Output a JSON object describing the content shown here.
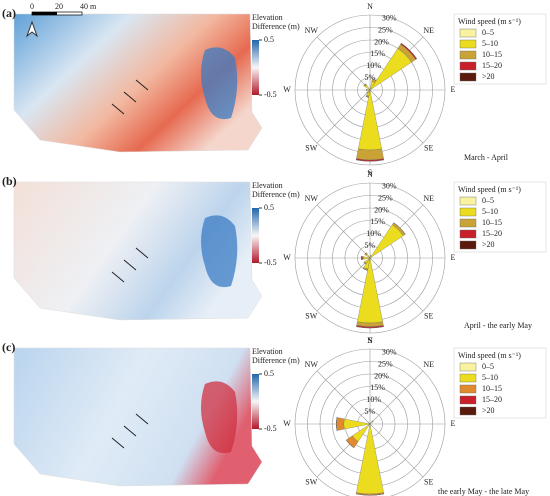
{
  "chart_data": [
    {
      "type": "windrose",
      "panel_label": "(a)",
      "caption": "March - April",
      "colorbar_title": [
        "Elevation",
        "Difference (m)"
      ],
      "colorbar_lim": [
        -0.5,
        0.5
      ],
      "colorbar_ticks": [
        0.5,
        -0.5
      ],
      "scale_bar": {
        "ticks": [
          0,
          20,
          {
            "value": 40,
            "label": "40 m"
          }
        ]
      },
      "categories": [
        "N",
        null,
        "NE",
        null,
        "E",
        null,
        "SE",
        null,
        "S",
        null,
        "SW",
        null,
        "W",
        null,
        "NW",
        null
      ],
      "rlim": [
        0,
        30
      ],
      "rticks": [
        {
          "value": 5,
          "label": "5%"
        },
        {
          "value": 10,
          "label": "10%"
        },
        {
          "value": 15,
          "label": "15%"
        },
        {
          "value": 20,
          "label": "20%"
        },
        {
          "value": 25,
          "label": "25%"
        },
        {
          "value": 30,
          "label": "30%"
        }
      ],
      "legend_title": "Wind speed (m s⁻¹)",
      "series": [
        {
          "name": "0–5",
          "color": "#f7f3a0",
          "values": [
            0,
            0.5,
            1,
            0,
            0,
            0,
            0,
            0,
            1,
            0.5,
            0.5,
            0,
            0.5,
            0,
            0.5,
            0
          ]
        },
        {
          "name": "5–10",
          "color": "#ecdc1e",
          "values": [
            0,
            3,
            19,
            0,
            0,
            0,
            0,
            0,
            23,
            2,
            1,
            0,
            1,
            0,
            2,
            0
          ]
        },
        {
          "name": "10–15",
          "color": "#c9a336",
          "values": [
            0,
            1,
            2,
            0,
            0,
            0,
            0,
            0,
            4,
            0.5,
            0,
            0,
            0,
            0,
            0.5,
            0
          ]
        },
        {
          "name": "15–20",
          "color": "#c8202a",
          "values": [
            0,
            0,
            0.5,
            0,
            0,
            0,
            0,
            0,
            0.5,
            0,
            0,
            0,
            0,
            0,
            0,
            0
          ]
        },
        {
          "name": ">20",
          "color": "#5c1a0c",
          "values": [
            0,
            0,
            0,
            0,
            0,
            0,
            0,
            0,
            0,
            0,
            0,
            0,
            0,
            0,
            0,
            0
          ]
        }
      ]
    },
    {
      "type": "windrose",
      "panel_label": "(b)",
      "caption": "April - the early May",
      "colorbar_title": [
        "Elevation",
        "Difference (m)"
      ],
      "colorbar_lim": [
        -0.5,
        0.5
      ],
      "colorbar_ticks": [
        0.5,
        -0.5
      ],
      "categories": [
        "N",
        null,
        "NE",
        null,
        "E",
        null,
        "SE",
        null,
        "S",
        null,
        "SW",
        null,
        "W",
        null,
        "NW",
        null
      ],
      "rlim": [
        0,
        30
      ],
      "rticks": [
        {
          "value": 5,
          "label": "5%"
        },
        {
          "value": 10,
          "label": "10%"
        },
        {
          "value": 15,
          "label": "15%"
        },
        {
          "value": 20,
          "label": "20%"
        },
        {
          "value": 25,
          "label": "25%"
        },
        {
          "value": 30,
          "label": "30%"
        }
      ],
      "legend_title": "Wind speed (m s⁻¹)",
      "series": [
        {
          "name": "0–5",
          "color": "#f7f3a0",
          "values": [
            0,
            0,
            1,
            0,
            0,
            0,
            0,
            0,
            1,
            0.5,
            0.5,
            0,
            0.5,
            0,
            0.5,
            0
          ]
        },
        {
          "name": "5–10",
          "color": "#ecdc1e",
          "values": [
            0,
            1,
            15,
            0,
            0,
            0,
            0,
            0,
            25,
            4,
            2,
            0,
            2,
            0,
            1.5,
            0
          ]
        },
        {
          "name": "10–15",
          "color": "#c9a336",
          "values": [
            0,
            0,
            1,
            0,
            0,
            0,
            0,
            0,
            1.5,
            0.5,
            0.5,
            0,
            0.5,
            0,
            0.5,
            0
          ]
        },
        {
          "name": "15–20",
          "color": "#c8202a",
          "values": [
            0,
            0,
            0,
            0,
            0,
            0,
            0,
            0,
            0.5,
            0,
            0,
            0,
            0.5,
            0,
            0,
            0
          ]
        },
        {
          "name": ">20",
          "color": "#5c1a0c",
          "values": [
            0,
            0,
            0,
            0,
            0,
            0,
            0,
            0,
            0,
            0,
            0,
            0,
            0,
            0,
            0,
            0
          ]
        }
      ]
    },
    {
      "type": "windrose",
      "panel_label": "(c)",
      "caption": "the early May - the late May",
      "colorbar_title": [
        "Elevation",
        "Difference (m)"
      ],
      "colorbar_lim": [
        -0.5,
        0.5
      ],
      "colorbar_ticks": [
        0.5,
        -0.5
      ],
      "categories": [
        "N",
        null,
        "NE",
        null,
        "E",
        null,
        "SE",
        null,
        "S",
        null,
        "SW",
        null,
        "W",
        null,
        "NW",
        null
      ],
      "rlim": [
        0,
        30
      ],
      "rticks": [
        {
          "value": 5,
          "label": "5%"
        },
        {
          "value": 10,
          "label": "10%"
        },
        {
          "value": 15,
          "label": "15%"
        },
        {
          "value": 20,
          "label": "20%"
        },
        {
          "value": 25,
          "label": "25%"
        },
        {
          "value": 30,
          "label": "30%"
        }
      ],
      "legend_title": "Wind speed (m s⁻¹)",
      "series": [
        {
          "name": "0–5",
          "color": "#f7f3a0",
          "values": [
            0,
            0,
            0.5,
            0,
            0,
            0,
            0,
            0,
            1,
            0,
            0.5,
            0,
            0.5,
            0,
            0,
            0
          ]
        },
        {
          "name": "5–10",
          "color": "#ecdc1e",
          "values": [
            0,
            0,
            1,
            0,
            0,
            0,
            0,
            0,
            27,
            0,
            8,
            0,
            10,
            0,
            0.5,
            0
          ]
        },
        {
          "name": "10–15",
          "color": "#e08a30",
          "values": [
            0,
            0,
            0,
            0,
            0,
            0,
            0,
            0,
            0.5,
            0,
            3,
            0,
            3,
            0,
            0,
            0
          ]
        },
        {
          "name": "15–20",
          "color": "#c8202a",
          "values": [
            0,
            0,
            0,
            0,
            0,
            0,
            0,
            0,
            0,
            0,
            0,
            0,
            0,
            0,
            0,
            0
          ]
        },
        {
          "name": ">20",
          "color": "#5c1a0c",
          "values": [
            0,
            0,
            0,
            0,
            0,
            0,
            0,
            0,
            0,
            0,
            0,
            0,
            0,
            0,
            0,
            0
          ]
        }
      ]
    }
  ]
}
